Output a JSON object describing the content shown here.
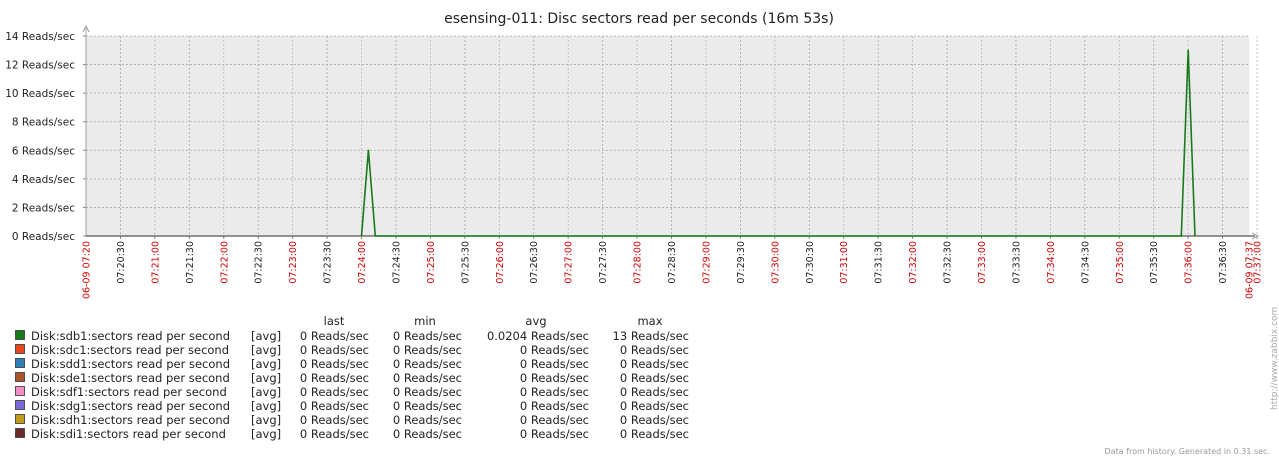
{
  "chart_data": {
    "type": "line",
    "title": "esensing-011: Disc sectors read per seconds (16m 53s)",
    "y_unit": "Reads/sec",
    "ylim": [
      0,
      14
    ],
    "y_ticks": [
      "0 Reads/sec",
      "2 Reads/sec",
      "4 Reads/sec",
      "6 Reads/sec",
      "8 Reads/sec",
      "10 Reads/sec",
      "12 Reads/sec",
      "14 Reads/sec"
    ],
    "x_start_label": "06-09 07:20",
    "x_end_label": "06-09 07:37",
    "x_ticks": [
      {
        "label": "07:20:30",
        "major": false
      },
      {
        "label": "07:21:00",
        "major": true
      },
      {
        "label": "07:21:30",
        "major": false
      },
      {
        "label": "07:22:00",
        "major": true
      },
      {
        "label": "07:22:30",
        "major": false
      },
      {
        "label": "07:23:00",
        "major": true
      },
      {
        "label": "07:23:30",
        "major": false
      },
      {
        "label": "07:24:00",
        "major": true
      },
      {
        "label": "07:24:30",
        "major": false
      },
      {
        "label": "07:25:00",
        "major": true
      },
      {
        "label": "07:25:30",
        "major": false
      },
      {
        "label": "07:26:00",
        "major": true
      },
      {
        "label": "07:26:30",
        "major": false
      },
      {
        "label": "07:27:00",
        "major": true
      },
      {
        "label": "07:27:30",
        "major": false
      },
      {
        "label": "07:28:00",
        "major": true
      },
      {
        "label": "07:28:30",
        "major": false
      },
      {
        "label": "07:29:00",
        "major": true
      },
      {
        "label": "07:29:30",
        "major": false
      },
      {
        "label": "07:30:00",
        "major": true
      },
      {
        "label": "07:30:30",
        "major": false
      },
      {
        "label": "07:31:00",
        "major": true
      },
      {
        "label": "07:31:30",
        "major": false
      },
      {
        "label": "07:32:00",
        "major": true
      },
      {
        "label": "07:32:30",
        "major": false
      },
      {
        "label": "07:33:00",
        "major": true
      },
      {
        "label": "07:33:30",
        "major": false
      },
      {
        "label": "07:34:00",
        "major": true
      },
      {
        "label": "07:34:30",
        "major": false
      },
      {
        "label": "07:35:00",
        "major": true
      },
      {
        "label": "07:35:30",
        "major": false
      },
      {
        "label": "07:36:00",
        "major": true
      },
      {
        "label": "07:36:30",
        "major": false
      },
      {
        "label": "07:37:00",
        "major": true
      }
    ],
    "grid": true,
    "series": [
      {
        "name": "Disk:sdb1:sectors read per second",
        "color": "#1a7a1a",
        "points": [
          [
            "07:24:00",
            0
          ],
          [
            "07:24:06",
            6
          ],
          [
            "07:24:12",
            0
          ],
          [
            "07:35:54",
            0
          ],
          [
            "07:36:00",
            13
          ],
          [
            "07:36:06",
            0
          ]
        ]
      },
      {
        "name": "Disk:sdc1:sectors read per second",
        "color": "#e8471d",
        "points": []
      },
      {
        "name": "Disk:sdd1:sectors read per second",
        "color": "#2e7fb8",
        "points": []
      },
      {
        "name": "Disk:sde1:sectors read per second",
        "color": "#a8562a",
        "points": []
      },
      {
        "name": "Disk:sdf1:sectors read per second",
        "color": "#f08fc0",
        "points": []
      },
      {
        "name": "Disk:sdg1:sectors read per second",
        "color": "#7a6ad8",
        "points": []
      },
      {
        "name": "Disk:sdh1:sectors read per second",
        "color": "#c09a1a",
        "points": []
      },
      {
        "name": "Disk:sdi1:sectors read per second",
        "color": "#6a2a2a",
        "points": []
      }
    ]
  },
  "legend": {
    "headers": {
      "last": "last",
      "min": "min",
      "avg": "avg",
      "max": "max"
    },
    "rows": [
      {
        "name": "Disk:sdb1:sectors read per second",
        "fn": "[avg]",
        "last": "0 Reads/sec",
        "min": "0 Reads/sec",
        "avg": "0.0204 Reads/sec",
        "max": "13 Reads/sec",
        "color": "#1a7a1a"
      },
      {
        "name": "Disk:sdc1:sectors read per second",
        "fn": "[avg]",
        "last": "0 Reads/sec",
        "min": "0 Reads/sec",
        "avg": "0 Reads/sec",
        "max": "0 Reads/sec",
        "color": "#e8471d"
      },
      {
        "name": "Disk:sdd1:sectors read per second",
        "fn": "[avg]",
        "last": "0 Reads/sec",
        "min": "0 Reads/sec",
        "avg": "0 Reads/sec",
        "max": "0 Reads/sec",
        "color": "#2e7fb8"
      },
      {
        "name": "Disk:sde1:sectors read per second",
        "fn": "[avg]",
        "last": "0 Reads/sec",
        "min": "0 Reads/sec",
        "avg": "0 Reads/sec",
        "max": "0 Reads/sec",
        "color": "#a8562a"
      },
      {
        "name": "Disk:sdf1:sectors read per second",
        "fn": "[avg]",
        "last": "0 Reads/sec",
        "min": "0 Reads/sec",
        "avg": "0 Reads/sec",
        "max": "0 Reads/sec",
        "color": "#f08fc0"
      },
      {
        "name": "Disk:sdg1:sectors read per second",
        "fn": "[avg]",
        "last": "0 Reads/sec",
        "min": "0 Reads/sec",
        "avg": "0 Reads/sec",
        "max": "0 Reads/sec",
        "color": "#7a6ad8"
      },
      {
        "name": "Disk:sdh1:sectors read per second",
        "fn": "[avg]",
        "last": "0 Reads/sec",
        "min": "0 Reads/sec",
        "avg": "0 Reads/sec",
        "max": "0 Reads/sec",
        "color": "#c09a1a"
      },
      {
        "name": "Disk:sdi1:sectors read per second",
        "fn": "[avg]",
        "last": "0 Reads/sec",
        "min": "0 Reads/sec",
        "avg": "0 Reads/sec",
        "max": "0 Reads/sec",
        "color": "#6a2a2a"
      }
    ]
  },
  "footer": "Data from history. Generated in 0.31 sec.",
  "side_label": "http://www.zabbix.com"
}
